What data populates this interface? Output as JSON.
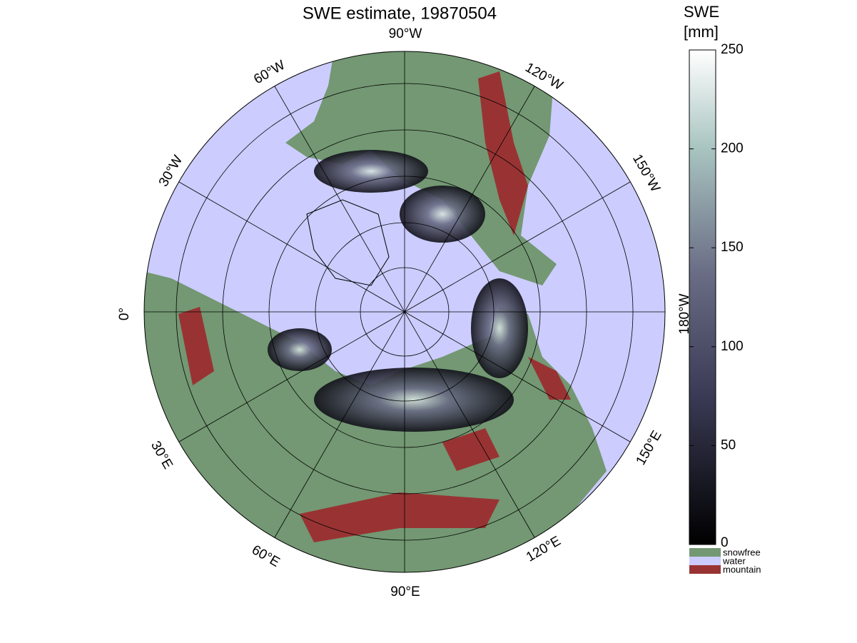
{
  "header": {
    "title": "SWE estimate, 19870504"
  },
  "map": {
    "longitude_labels": [
      "90°W",
      "120°W",
      "150°W",
      "180°W",
      "150°E",
      "120°E",
      "90°E",
      "60°E",
      "30°E",
      "0°",
      "30°W",
      "60°W"
    ]
  },
  "colorbar": {
    "label": [
      "SWE",
      "[mm]"
    ],
    "lim": [
      0,
      250
    ],
    "ticks": [
      0,
      50,
      100,
      150,
      200,
      250
    ]
  },
  "legend": [
    {
      "label": "snowfree",
      "color": "#739873"
    },
    {
      "label": "water",
      "color": "#ccccff"
    },
    {
      "label": "mountain",
      "color": "#993333"
    }
  ]
}
